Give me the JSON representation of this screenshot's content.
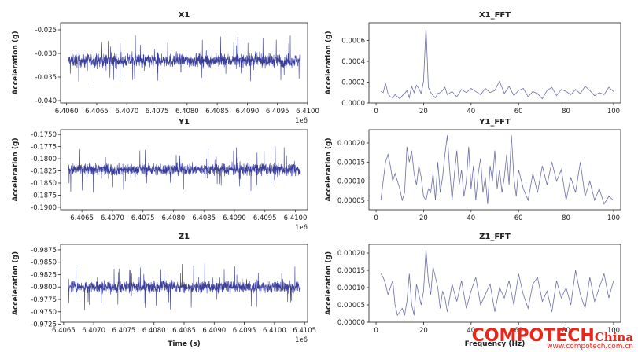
{
  "chart_data": [
    {
      "type": "line",
      "title": "X1",
      "ylabel": "Acceleration (g)",
      "xlabel": "",
      "x_range": [
        6405900,
        6410000
      ],
      "x_offset_label": "1e6",
      "x_ticks": [
        "6.4060",
        "6.4065",
        "6.4070",
        "6.4075",
        "6.4080",
        "6.4085",
        "6.4090",
        "6.4095",
        "6.4100"
      ],
      "ylim": [
        -0.0405,
        -0.0235
      ],
      "y_ticks": [
        "-0.025",
        "-0.030",
        "-0.035",
        "-0.040"
      ],
      "series": [
        {
          "signal_center": -0.0315,
          "signal_band": 0.0035
        }
      ],
      "color": "#3a3f9b"
    },
    {
      "type": "line",
      "title": "X1_FFT",
      "ylabel": "Acceleration (g)",
      "xlabel": "",
      "x_range": [
        -3,
        103
      ],
      "x_ticks": [
        "0",
        "20",
        "40",
        "60",
        "80",
        "100"
      ],
      "ylim": [
        0,
        0.00077
      ],
      "y_ticks": [
        "0.0000",
        "0.0002",
        "0.0004",
        "0.0006"
      ],
      "series": [
        {
          "x": [
            2,
            3,
            4,
            5,
            6,
            7,
            8,
            9,
            10,
            11,
            12,
            13,
            14,
            15,
            16,
            17,
            18,
            19,
            20,
            21,
            22,
            23,
            24,
            25,
            26,
            27,
            28,
            29,
            30,
            32,
            34,
            36,
            38,
            40,
            42,
            44,
            46,
            48,
            50,
            52,
            54,
            56,
            58,
            60,
            62,
            64,
            66,
            68,
            70,
            72,
            74,
            76,
            78,
            80,
            82,
            84,
            86,
            88,
            90,
            92,
            94,
            96,
            98,
            100
          ],
          "y": [
            0.00011,
            0.0001,
            0.00019,
            9e-05,
            6e-05,
            5e-05,
            8e-05,
            6e-05,
            4e-05,
            7e-05,
            9e-05,
            0.00012,
            5e-05,
            0.00016,
            0.0001,
            0.00017,
            0.00014,
            9e-05,
            0.00021,
            0.00073,
            0.00015,
            0.0001,
            7e-05,
            5e-05,
            9e-05,
            0.0001,
            0.00012,
            0.00015,
            8e-05,
            0.00011,
            6e-05,
            0.00013,
            0.0001,
            0.00014,
            0.00011,
            8e-05,
            0.00014,
            0.0001,
            0.00012,
            0.00021,
            9e-05,
            0.00016,
            7e-05,
            0.00012,
            0.00014,
            6e-05,
            0.00011,
            9e-05,
            4e-05,
            0.00012,
            0.00015,
            7e-05,
            0.00013,
            0.00011,
            8e-05,
            0.00013,
            9e-05,
            0.00016,
            0.00012,
            7e-05,
            0.0001,
            8e-05,
            0.00015,
            0.00011
          ]
        }
      ],
      "color": "#6b6fa6"
    },
    {
      "type": "line",
      "title": "Y1",
      "ylabel": "Acceleration (g)",
      "xlabel": "",
      "x_range": [
        6406150,
        6410200
      ],
      "x_offset_label": "1e6",
      "x_ticks": [
        "6.4065",
        "6.4070",
        "6.4075",
        "6.4080",
        "6.4085",
        "6.4090",
        "6.4095",
        "6.4100"
      ],
      "ylim": [
        -0.1905,
        -0.174
      ],
      "y_ticks": [
        "-0.1750",
        "-0.1775",
        "-0.1800",
        "-0.1825",
        "-0.1850",
        "-0.1875",
        "-0.1900"
      ],
      "series": [
        {
          "signal_center": -0.1822,
          "signal_band": 0.003
        }
      ],
      "color": "#3a3f9b"
    },
    {
      "type": "line",
      "title": "Y1_FFT",
      "ylabel": "Acceleration (g)",
      "xlabel": "",
      "x_range": [
        -3,
        103
      ],
      "x_ticks": [
        "0",
        "20",
        "40",
        "60",
        "80",
        "100"
      ],
      "ylim": [
        2.5e-05,
        0.000235
      ],
      "y_ticks": [
        "0.00005",
        "0.00010",
        "0.00015",
        "0.00020"
      ],
      "series": [
        {
          "x": [
            2,
            3,
            4,
            5,
            6,
            7,
            8,
            9,
            10,
            11,
            12,
            13,
            14,
            15,
            16,
            17,
            18,
            19,
            20,
            21,
            22,
            23,
            24,
            25,
            26,
            27,
            28,
            29,
            30,
            31,
            32,
            33,
            34,
            35,
            36,
            37,
            38,
            39,
            40,
            41,
            42,
            43,
            44,
            45,
            46,
            47,
            48,
            49,
            50,
            51,
            52,
            53,
            54,
            55,
            56,
            57,
            58,
            59,
            60,
            62,
            64,
            66,
            68,
            70,
            72,
            74,
            76,
            78,
            80,
            82,
            84,
            86,
            88,
            90,
            92,
            94,
            96,
            98,
            100
          ],
          "y": [
            5e-05,
            0.0001,
            0.00015,
            0.00017,
            0.00014,
            0.0001,
            0.00012,
            0.0001,
            8e-05,
            5e-05,
            7e-05,
            0.00019,
            0.00015,
            0.00018,
            0.00012,
            9e-05,
            0.00014,
            0.00011,
            6e-05,
            5e-05,
            8e-05,
            7e-05,
            0.00012,
            5e-05,
            0.00015,
            7e-05,
            0.00011,
            0.00017,
            0.00022,
            0.00013,
            5e-05,
            0.00012,
            0.00018,
            9e-05,
            0.00013,
            6e-05,
            0.0001,
            0.00019,
            8e-05,
            0.00014,
            5e-05,
            0.00012,
            0.00016,
            7e-05,
            0.00011,
            4e-05,
            0.00014,
            0.0001,
            0.00018,
            8e-05,
            0.00013,
            7e-05,
            0.00011,
            0.00017,
            9e-05,
            0.00022,
            0.00011,
            6e-05,
            0.00013,
            8e-05,
            5e-05,
            0.00012,
            7e-05,
            0.00014,
            9e-05,
            0.00015,
            0.0001,
            0.00013,
            5e-05,
            0.00011,
            7e-05,
            0.00015,
            6e-05,
            0.0001,
            5e-05,
            8e-05,
            4e-05,
            6e-05,
            5e-05
          ]
        }
      ],
      "color": "#6b6fa6"
    },
    {
      "type": "line",
      "title": "Z1",
      "ylabel": "Acceleration (g)",
      "xlabel": "Time (s)",
      "x_range": [
        6406450,
        6410550
      ],
      "x_offset_label": "1e6",
      "x_ticks": [
        "6.4065",
        "6.4070",
        "6.4075",
        "6.4080",
        "6.4085",
        "6.4090",
        "6.4095",
        "6.4100",
        "6.4105"
      ],
      "ylim": [
        -0.9729,
        -0.9886
      ],
      "y_ticks": [
        "-0.9875",
        "-0.9850",
        "-0.9825",
        "-0.9800",
        "-0.9775",
        "-0.9750",
        "-0.9725"
      ],
      "series": [
        {
          "signal_center": -0.98,
          "signal_band": 0.003
        }
      ],
      "color": "#3a3f9b"
    },
    {
      "type": "line",
      "title": "Z1_FFT",
      "ylabel": "Acceleration (g)",
      "xlabel": "Frequency (Hz)",
      "x_range": [
        -3,
        103
      ],
      "x_ticks": [
        "0",
        "20",
        "40",
        "60",
        "80",
        "100"
      ],
      "ylim": [
        0,
        0.000225
      ],
      "y_ticks": [
        "0.00000",
        "0.00005",
        "0.00010",
        "0.00015",
        "0.00020"
      ],
      "series": [
        {
          "x": [
            2,
            3,
            4,
            5,
            6,
            7,
            8,
            9,
            10,
            11,
            12,
            13,
            14,
            15,
            16,
            17,
            18,
            19,
            20,
            21,
            22,
            23,
            24,
            25,
            26,
            27,
            28,
            29,
            30,
            32,
            34,
            36,
            38,
            40,
            42,
            44,
            46,
            48,
            50,
            52,
            54,
            56,
            58,
            60,
            62,
            64,
            66,
            68,
            70,
            72,
            74,
            76,
            78,
            80,
            82,
            84,
            86,
            88,
            90,
            92,
            94,
            96,
            98,
            100
          ],
          "y": [
            0.00014,
            0.00013,
            0.00011,
            8e-05,
            0.0001,
            0.00012,
            5e-05,
            2e-05,
            3e-05,
            4e-05,
            2e-05,
            6e-05,
            0.00014,
            5e-05,
            2e-05,
            0.00011,
            8e-05,
            5e-05,
            9e-05,
            0.00021,
            0.00012,
            8e-05,
            0.00016,
            0.00013,
            0.0001,
            4e-05,
            9e-05,
            7e-05,
            3e-05,
            0.00011,
            6e-05,
            0.00012,
            4e-05,
            9e-05,
            0.00013,
            5e-05,
            8e-05,
            0.00011,
            3e-05,
            0.0001,
            7e-05,
            0.00012,
            5e-05,
            0.00014,
            8e-05,
            4e-05,
            0.00011,
            0.00013,
            6e-05,
            9e-05,
            3e-05,
            0.00012,
            7e-05,
            0.0001,
            5e-05,
            0.00015,
            8e-05,
            4e-05,
            0.00013,
            6e-05,
            0.0001,
            0.00014,
            7e-05,
            0.00012
          ]
        }
      ],
      "color": "#6b6fa6"
    }
  ],
  "watermark": {
    "brand": "COMPOTECH",
    "suffix": "China",
    "url": "www.compotech.com.cn"
  }
}
